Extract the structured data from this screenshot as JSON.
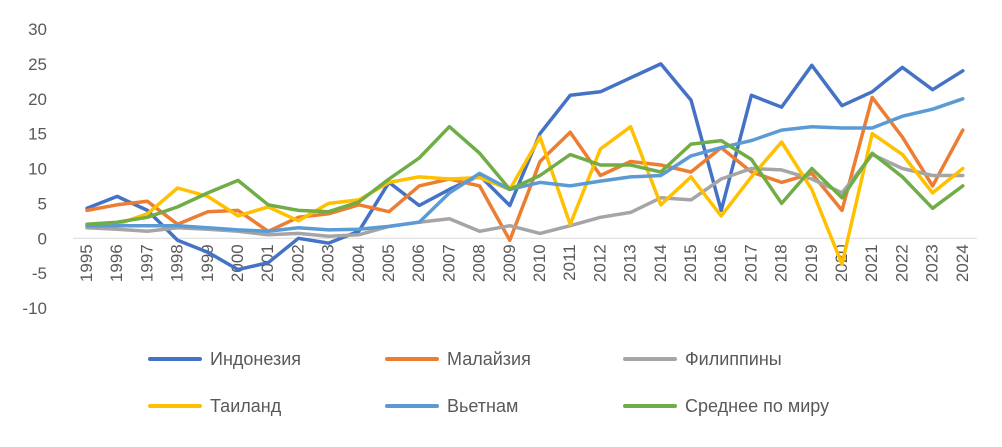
{
  "chart_data": {
    "type": "line",
    "x": [
      "1995",
      "1996",
      "1997",
      "1998",
      "1999",
      "2000",
      "2001",
      "2002",
      "2003",
      "2004",
      "2005",
      "2006",
      "2007",
      "2008",
      "2009",
      "2010",
      "2011",
      "2012",
      "2013",
      "2014",
      "2015",
      "2016",
      "2017",
      "2018",
      "2019",
      "2020",
      "2021",
      "2022",
      "2023",
      "2024"
    ],
    "ylim": [
      -10,
      30
    ],
    "yticks": [
      -10,
      -5,
      0,
      5,
      10,
      15,
      20,
      25,
      30
    ],
    "grid": false,
    "legend_position": "bottom",
    "series": [
      {
        "name": "Индонезия",
        "color": "#4472C4",
        "values": [
          4.3,
          6,
          4,
          -0.3,
          -2,
          -4.5,
          -3.5,
          0,
          -0.7,
          1,
          8,
          4.7,
          7,
          9,
          4.7,
          15,
          20.5,
          21,
          23,
          25,
          19.8,
          4,
          20.5,
          18.8,
          24.8,
          19,
          21,
          24.5,
          21.3,
          24
        ]
      },
      {
        "name": "Малайзия",
        "color": "#ED7D31",
        "values": [
          4,
          4.8,
          5.3,
          2,
          3.8,
          4,
          1,
          3,
          3.5,
          4.8,
          3.8,
          7.5,
          8.5,
          7.5,
          -0.3,
          11,
          15.2,
          9,
          11,
          10.5,
          9.5,
          13,
          9.5,
          8,
          9.3,
          4,
          20.2,
          14.5,
          7.5,
          15.5
        ]
      },
      {
        "name": "Филиппины",
        "color": "#A5A5A5",
        "values": [
          1.5,
          1.3,
          1,
          1.5,
          1.3,
          1,
          0.5,
          0.7,
          0.3,
          0.5,
          1.7,
          2.3,
          2.8,
          1,
          1.8,
          0.7,
          1.8,
          3,
          3.7,
          5.8,
          5.5,
          8.5,
          10,
          9.8,
          8.5,
          6.5,
          12,
          10,
          9,
          9
        ]
      },
      {
        "name": "Таиланд",
        "color": "#FFC000",
        "values": [
          1.8,
          2,
          3.5,
          7.2,
          6,
          3.2,
          4.5,
          2.5,
          5,
          5.5,
          8,
          8.8,
          8.5,
          8.7,
          7,
          14.5,
          2,
          12.8,
          16,
          4.8,
          8.8,
          3.2,
          8.8,
          13.8,
          7,
          -3.7,
          15,
          12,
          6.5,
          10
        ]
      },
      {
        "name": "Вьетнам",
        "color": "#5B9BD5",
        "values": [
          1.8,
          1.8,
          1.8,
          1.8,
          1.5,
          1.2,
          1,
          1.5,
          1.2,
          1.3,
          1.7,
          2.3,
          6.5,
          9.3,
          7,
          8,
          7.5,
          8.2,
          8.8,
          9,
          11.8,
          13,
          14,
          15.5,
          16,
          15.8,
          15.8,
          17.5,
          18.5,
          20
        ]
      },
      {
        "name": "Среднее по миру",
        "color": "#70AD47",
        "values": [
          2,
          2.3,
          3,
          4.5,
          6.5,
          8.3,
          4.8,
          4,
          3.8,
          5.2,
          8.5,
          11.5,
          16,
          12.2,
          7,
          9,
          12,
          10.5,
          10.5,
          9.5,
          13.5,
          14,
          11.3,
          5,
          10,
          5.8,
          12.2,
          8.8,
          4.3,
          7.5
        ]
      }
    ]
  }
}
